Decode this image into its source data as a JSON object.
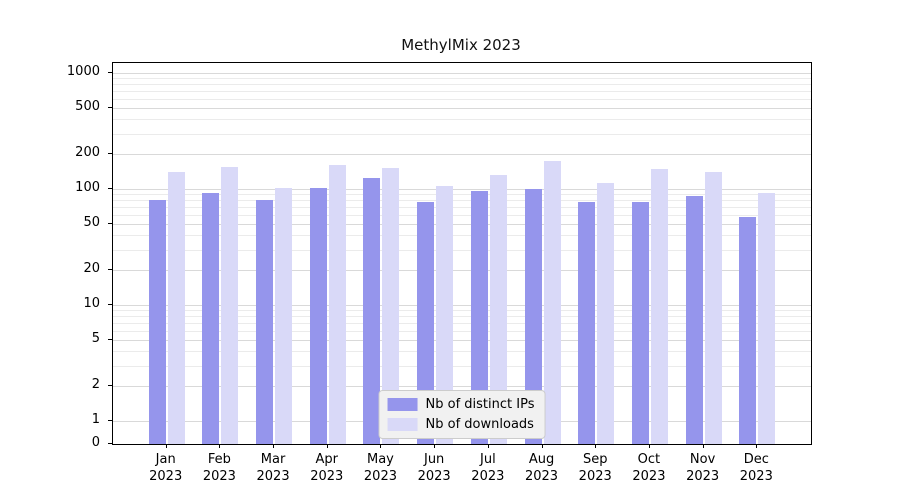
{
  "chart_data": {
    "type": "bar",
    "title": "MethylMix 2023",
    "x_categories": [
      "Jan",
      "Feb",
      "Mar",
      "Apr",
      "May",
      "Jun",
      "Jul",
      "Aug",
      "Sep",
      "Oct",
      "Nov",
      "Dec"
    ],
    "x_year": "2023",
    "y_scale": "log",
    "y_ticks": [
      0,
      1,
      2,
      5,
      10,
      20,
      50,
      100,
      200,
      500,
      1000
    ],
    "y_minor_gridlines": [
      3,
      4,
      6,
      7,
      8,
      9,
      30,
      40,
      60,
      70,
      80,
      90,
      300,
      400,
      600,
      700,
      800,
      900
    ],
    "ylim": [
      0,
      1000
    ],
    "grid": true,
    "legend_position": "bottom-center",
    "series": [
      {
        "name": "Nb of distinct IPs",
        "color": "#9595ec",
        "values": [
          80,
          92,
          80,
          103,
          125,
          78,
          97,
          100,
          78,
          78,
          87,
          57
        ]
      },
      {
        "name": "Nb of downloads",
        "color": "#d9d9f8",
        "values": [
          140,
          155,
          102,
          160,
          152,
          107,
          132,
          175,
          112,
          150,
          140,
          92
        ]
      }
    ]
  },
  "colors": {
    "background": "#ffffff",
    "grid_major": "#d9d9d9",
    "grid_minor": "#ebebeb",
    "axis": "#000000",
    "legend_bg": "#f1f1f1",
    "legend_border": "#cccccc"
  }
}
